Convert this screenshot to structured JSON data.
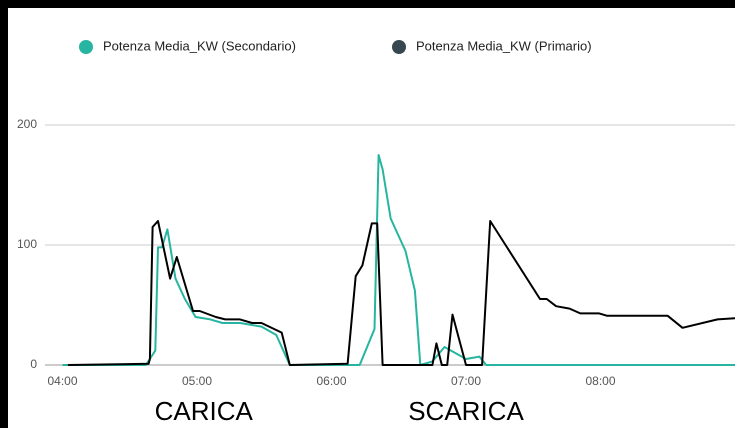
{
  "chart_data": {
    "type": "line",
    "series": [
      {
        "name": "Potenza Media_KW (Secondario)",
        "color": "#26b5a0",
        "x": [
          4.0,
          4.62,
          4.69,
          4.71,
          4.74,
          4.78,
          4.84,
          4.91,
          4.99,
          5.1,
          5.19,
          5.32,
          5.48,
          5.59,
          5.69,
          6.21,
          6.32,
          6.35,
          6.38,
          6.44,
          6.55,
          6.62,
          6.66,
          6.75,
          6.84,
          7.0,
          7.1,
          7.15,
          9.0
        ],
        "values": [
          0,
          0,
          12,
          98,
          98,
          113,
          72,
          55,
          40,
          38,
          35,
          35,
          32,
          25,
          0,
          0,
          30,
          175,
          163,
          122,
          95,
          62,
          0,
          3,
          15,
          5,
          7,
          0,
          0
        ]
      },
      {
        "name": "Potenza Media_KW (Primario)",
        "color": "#37474f",
        "line_color": "#000000",
        "x": [
          4.04,
          4.64,
          4.65,
          4.67,
          4.71,
          4.8,
          4.85,
          4.97,
          5.02,
          5.14,
          5.21,
          5.32,
          5.41,
          5.48,
          5.63,
          5.69,
          6.12,
          6.18,
          6.23,
          6.3,
          6.34,
          6.38,
          6.75,
          6.78,
          6.82,
          6.86,
          6.9,
          7.0,
          7.12,
          7.18,
          7.55,
          7.6,
          7.67,
          7.77,
          7.85,
          7.99,
          8.05,
          8.5,
          8.61,
          8.87,
          9.0
        ],
        "values": [
          0,
          1,
          5,
          115,
          120,
          72,
          90,
          45,
          45,
          40,
          38,
          38,
          35,
          35,
          27,
          0,
          1,
          74,
          83,
          118,
          118,
          0,
          0,
          18,
          0,
          0,
          42,
          0,
          0,
          120,
          55,
          55,
          49,
          47,
          43,
          43,
          41,
          41,
          31,
          38,
          39
        ]
      }
    ],
    "xlim": [
      3.87,
      9.0
    ],
    "xticks": [
      {
        "value": 4,
        "label": "04:00"
      },
      {
        "value": 5,
        "label": "05:00"
      },
      {
        "value": 6,
        "label": "06:00"
      },
      {
        "value": 7,
        "label": "07:00"
      },
      {
        "value": 8,
        "label": "08:00"
      }
    ],
    "ylim": [
      0,
      250
    ],
    "yticks": [
      0,
      100,
      200
    ],
    "grid": true,
    "annotations": [
      {
        "text": "CARICA",
        "x": 5.05
      },
      {
        "text": "SCARICA",
        "x": 7.0
      }
    ]
  }
}
